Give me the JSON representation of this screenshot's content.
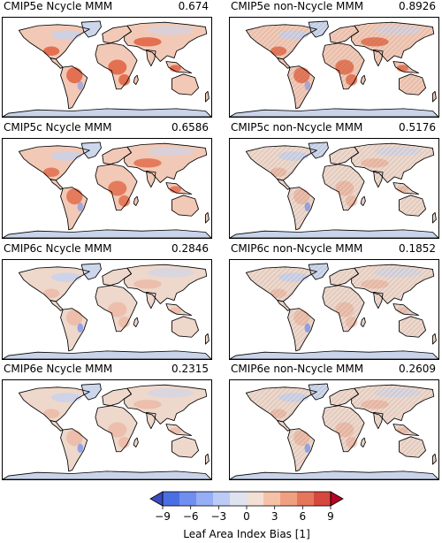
{
  "panels": [
    {
      "title": "CMIP5e Ncycle MMM",
      "score": "0.674",
      "intensity": 1.0
    },
    {
      "title": "CMIP5e non-Ncycle MMM",
      "score": "0.8926",
      "intensity": 0.85
    },
    {
      "title": "CMIP5c Ncycle MMM",
      "score": "0.6586",
      "intensity": 0.8
    },
    {
      "title": "CMIP5c non-Ncycle MMM",
      "score": "0.5176",
      "intensity": 0.4
    },
    {
      "title": "CMIP6c Ncycle MMM",
      "score": "0.2846",
      "intensity": 0.3
    },
    {
      "title": "CMIP6c non-Ncycle MMM",
      "score": "0.1852",
      "intensity": 0.25
    },
    {
      "title": "CMIP6e Ncycle MMM",
      "score": "0.2315",
      "intensity": 0.3
    },
    {
      "title": "CMIP6e non-Ncycle MMM",
      "score": "0.2609",
      "intensity": 0.35
    }
  ],
  "colorbar": {
    "label": "Leaf Area Index Bias [1]",
    "ticks": [
      "−9",
      "−6",
      "−3",
      "0",
      "3",
      "6",
      "9"
    ],
    "min": -9,
    "max": 9,
    "colors": [
      "#4a6fe3",
      "#6f8ef0",
      "#95aef5",
      "#bccbf5",
      "#dfe3f0",
      "#f2e0d6",
      "#f5c2a8",
      "#f0a080",
      "#e57659",
      "#d6473d"
    ],
    "under_color": "#3b4cc0",
    "over_color": "#b40426"
  }
}
